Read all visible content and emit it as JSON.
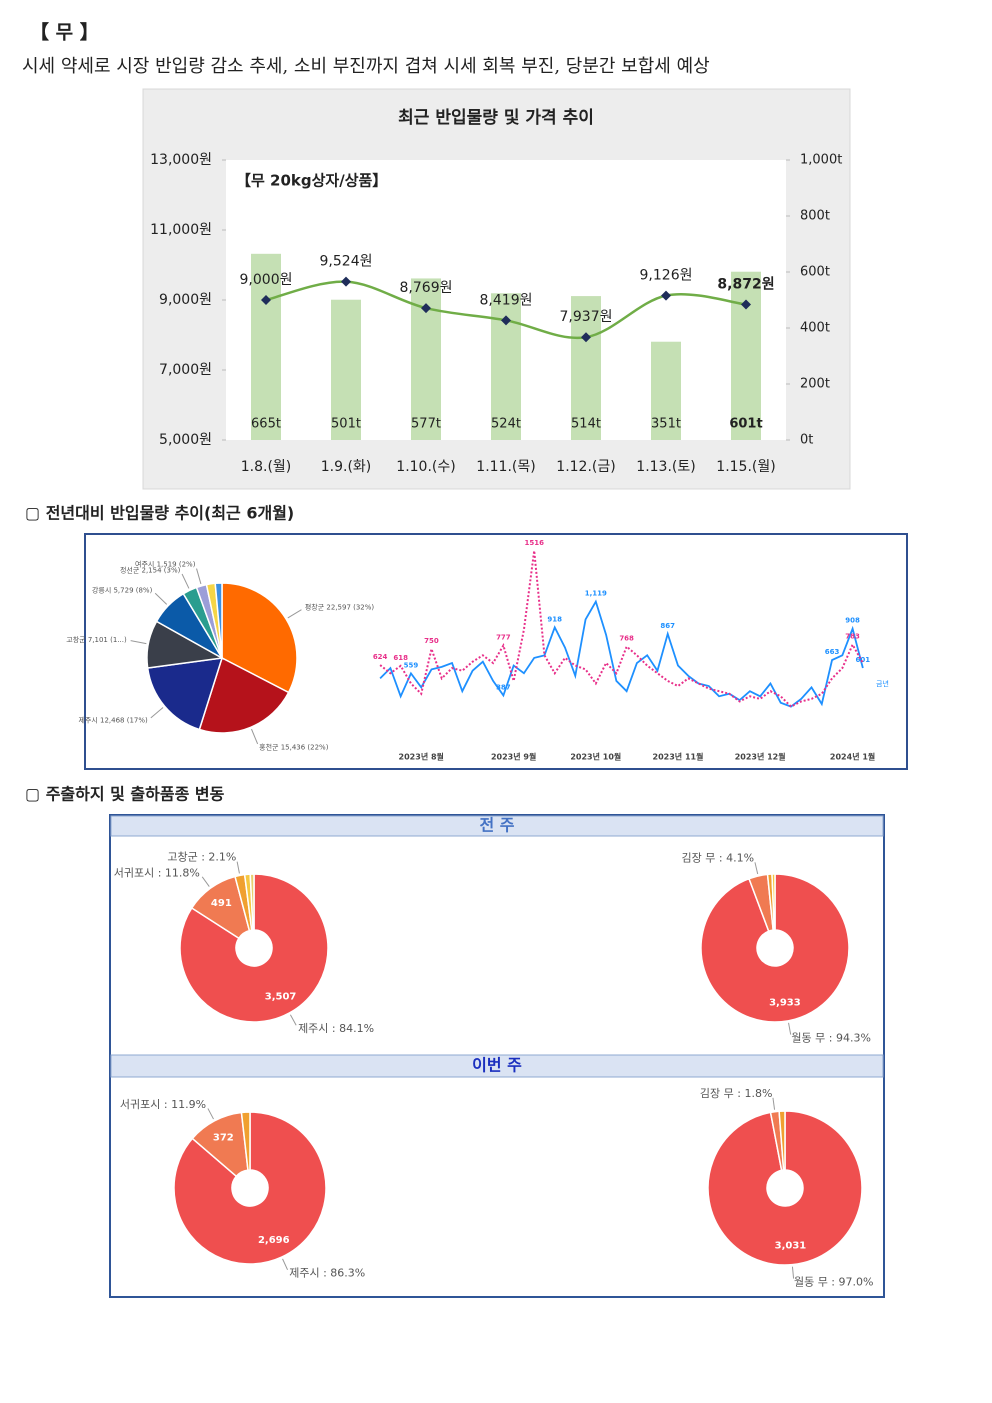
{
  "title": "【 무 】",
  "summary": "시세 약세로 시장 반입량 감소 추세, 소비 부진까지 겹쳐 시세 회복 부진, 당분간 보합세 예상",
  "sections": [
    "▢ 전년대비 반입물량 추이(최근 6개월)",
    "▢ 주출하지 및 출하품종 변동"
  ],
  "panels": [
    "전 주",
    "이번 주"
  ],
  "chart_data": [
    {
      "type": "combo",
      "title": "최근 반입물량 및 가격 추이",
      "annotation": "【무 20kg상자/상품】",
      "categories": [
        "1.8.(월)",
        "1.9.(화)",
        "1.10.(수)",
        "1.11.(목)",
        "1.12.(금)",
        "1.13.(토)",
        "1.15.(월)"
      ],
      "ylim": [
        5000,
        13000
      ],
      "yticks": [
        {
          "value": 5000,
          "label": "5,000원"
        },
        {
          "value": 7000,
          "label": "7,000원"
        },
        {
          "value": 9000,
          "label": "9,000원"
        },
        {
          "value": 11000,
          "label": "11,000원"
        },
        {
          "value": 13000,
          "label": "13,000원"
        }
      ],
      "y2lim": [
        0,
        1000
      ],
      "y2ticks": [
        {
          "value": 0,
          "label": "0t"
        },
        {
          "value": 200,
          "label": "200t"
        },
        {
          "value": 400,
          "label": "400t"
        },
        {
          "value": 600,
          "label": "600t"
        },
        {
          "value": 800,
          "label": "800t"
        },
        {
          "value": 1000,
          "label": "1,000t"
        }
      ],
      "series": [
        {
          "type": "bar",
          "axis": "y2",
          "color": "#c5e0b4",
          "values": [
            665,
            501,
            577,
            524,
            514,
            351,
            601
          ],
          "value_labels": [
            "665t",
            "501t",
            "577t",
            "524t",
            "514t",
            "351t",
            "601t"
          ]
        },
        {
          "type": "line",
          "color": "#70ad47",
          "marker_color": "#1f2d5a",
          "values": [
            9000,
            9524,
            8769,
            8419,
            7937,
            9126,
            8872
          ],
          "value_labels": [
            "9,000원",
            "9,524원",
            "8,769원",
            "8,419원",
            "7,937원",
            "9,126원",
            "8,872원"
          ]
        }
      ]
    },
    {
      "type": "pie",
      "labels": [
        "평창군 22,597 (32%)",
        "홍천군 15,436 (22%)",
        "제주시 12,468 (17%)",
        "고창군 7,101 (1...)",
        "강릉시 5,729 (8%)",
        "정선군 2,154 (3%)",
        "여주시 1,519 (2%)",
        null,
        null
      ],
      "values": [
        22597,
        15436,
        12468,
        7101,
        5729,
        2154,
        1519,
        1300,
        1000
      ],
      "colors": [
        "#ff6a00",
        "#b5121b",
        "#1a2a8c",
        "#3a3f4a",
        "#0b5aa8",
        "#2a9d8f",
        "#9b9ed8",
        "#f5d547",
        "#3b8fe0"
      ]
    },
    {
      "type": "line",
      "annotation": "금년",
      "categories": [
        null,
        null,
        null,
        null,
        "2023년 8월",
        null,
        null,
        null,
        null,
        null,
        null,
        null,
        null,
        "2023년 9월",
        null,
        null,
        null,
        null,
        null,
        null,
        null,
        "2023년 10월",
        null,
        null,
        null,
        null,
        null,
        null,
        null,
        "2023년 11월",
        null,
        null,
        null,
        null,
        null,
        null,
        null,
        "2023년 12월",
        null,
        null,
        null,
        null,
        null,
        null,
        null,
        null,
        "2024년 1월",
        null
      ],
      "ylim": [
        0,
        1600
      ],
      "series": [
        {
          "color": "#1e90ff",
          "dash": false,
          "values": [
            520,
            600,
            380,
            559,
            450,
            590,
            610,
            640,
            420,
            580,
            650,
            500,
            387,
            620,
            560,
            680,
            700,
            918,
            760,
            540,
            980,
            1119,
            860,
            500,
            420,
            640,
            700,
            580,
            867,
            620,
            540,
            480,
            460,
            380,
            400,
            350,
            420,
            380,
            480,
            330,
            300,
            360,
            450,
            320,
            663,
            700,
            908,
            601
          ],
          "value_labels": [
            null,
            null,
            null,
            "559",
            null,
            null,
            null,
            null,
            null,
            null,
            null,
            null,
            "387",
            null,
            null,
            null,
            null,
            "918",
            null,
            null,
            null,
            "1,119",
            null,
            null,
            null,
            null,
            null,
            null,
            "867",
            null,
            null,
            null,
            null,
            null,
            null,
            null,
            null,
            null,
            null,
            null,
            null,
            null,
            null,
            null,
            "663",
            null,
            "908",
            "601"
          ]
        },
        {
          "color": "#e8308a",
          "dash": true,
          "values": [
            624,
            560,
            618,
            480,
            400,
            750,
            520,
            600,
            580,
            650,
            700,
            640,
            777,
            500,
            900,
            1516,
            700,
            560,
            680,
            620,
            590,
            480,
            640,
            560,
            768,
            700,
            620,
            560,
            500,
            460,
            520,
            480,
            440,
            420,
            400,
            340,
            380,
            360,
            420,
            380,
            300,
            340,
            360,
            400,
            520,
            600,
            783,
            640
          ],
          "value_labels": [
            "624",
            null,
            "618",
            null,
            null,
            "750",
            null,
            null,
            null,
            null,
            null,
            null,
            "777",
            null,
            null,
            "1516",
            null,
            null,
            null,
            null,
            null,
            null,
            null,
            null,
            "768",
            null,
            null,
            null,
            null,
            null,
            null,
            null,
            null,
            null,
            null,
            null,
            null,
            null,
            null,
            null,
            null,
            null,
            null,
            null,
            null,
            null,
            "783",
            null
          ]
        }
      ]
    },
    {
      "type": "donut",
      "labels": [
        "제주시 : 84.1%",
        "서귀포시 : 11.8%",
        "고창군 : 2.1%",
        null,
        null
      ],
      "values": [
        3507,
        491,
        88,
        50,
        34
      ],
      "value_labels": [
        "3,507",
        "491",
        null,
        null,
        null
      ],
      "colors": [
        "#ef4f4f",
        "#f07a52",
        "#f0a030",
        "#f5c842",
        "#e8d070"
      ]
    },
    {
      "type": "donut",
      "labels": [
        "월동 무 : 94.3%",
        "김장 무 : 4.1%",
        null,
        null
      ],
      "values": [
        3933,
        171,
        40,
        27
      ],
      "value_labels": [
        "3,933",
        null,
        null,
        null
      ],
      "colors": [
        "#ef4f4f",
        "#f07a52",
        "#f0a030",
        "#f5c842"
      ]
    },
    {
      "type": "donut",
      "labels": [
        "제주시 : 86.3%",
        "서귀포시 : 11.9%",
        null
      ],
      "values": [
        2696,
        372,
        56
      ],
      "value_labels": [
        "2,696",
        "372",
        null
      ],
      "colors": [
        "#ef4f4f",
        "#f07a52",
        "#f0a030"
      ]
    },
    {
      "type": "donut",
      "labels": [
        "월동 무 : 97.0%",
        "김장 무 : 1.8%",
        null
      ],
      "values": [
        3031,
        56,
        38
      ],
      "value_labels": [
        "3,031",
        null,
        null
      ],
      "colors": [
        "#ef4f4f",
        "#f07a52",
        "#f0a030"
      ]
    }
  ]
}
